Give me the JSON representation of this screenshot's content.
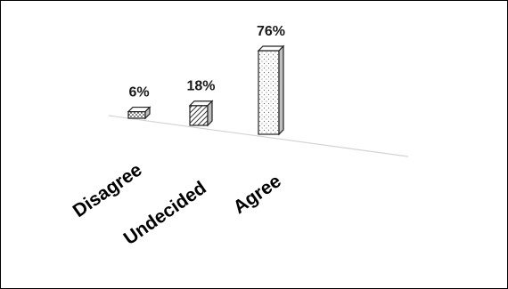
{
  "chart_data": {
    "type": "bar",
    "categories": [
      "Disagree",
      "Undecided",
      "Agree"
    ],
    "values": [
      6,
      18,
      76
    ],
    "value_suffix": "%",
    "title": "",
    "xlabel": "",
    "ylabel": "",
    "ylim": [
      0,
      76
    ],
    "grid": false,
    "legend": "none",
    "style": "3d-column",
    "colors": {
      "bar_fill": "#ffffff",
      "bar_stroke": "#222222",
      "pattern": "#444444",
      "floor_line": "#d4d4d4",
      "frame": "#000000"
    },
    "labels": [
      "6%",
      "18%",
      "76%"
    ]
  }
}
